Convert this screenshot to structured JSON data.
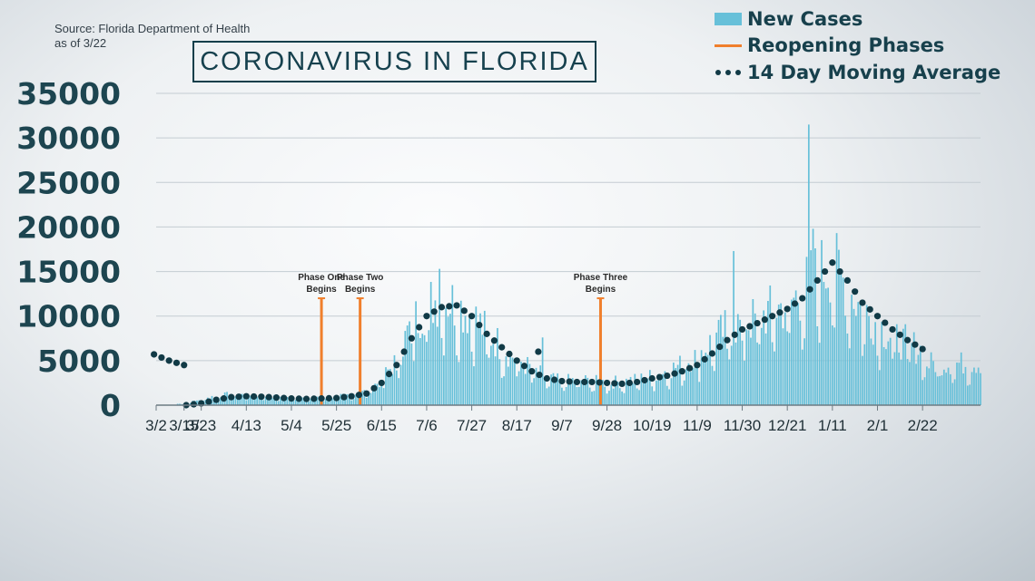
{
  "source": {
    "line1": "Source: Florida Department of Health",
    "line2": "as of 3/22"
  },
  "colors": {
    "bar": "#67c0d9",
    "phase": "#f07f2c",
    "average": "#113a46",
    "grid": "#c4ccd2",
    "axis": "#6d7b83"
  },
  "chart_data": {
    "type": "bar",
    "title": "CORONAVIRUS IN FLORIDA",
    "xlabel": "",
    "ylabel": "",
    "ylim": [
      0,
      35000
    ],
    "yticks": [
      0,
      5000,
      10000,
      15000,
      20000,
      25000,
      30000,
      35000
    ],
    "xticks": [
      "3/2",
      "3/23",
      "4/13",
      "5/4",
      "5/25",
      "6/15",
      "7/6",
      "7/27",
      "8/17",
      "9/7",
      "9/28",
      "10/19",
      "11/9",
      "11/30",
      "12/21",
      "1/11",
      "2/1",
      "2/22",
      "3/15"
    ],
    "grid": true,
    "legend_position": "top-right",
    "legend": [
      "New Cases",
      "Reopening Phases",
      "14 Day Moving Average"
    ],
    "date_range": [
      "3/2/2020",
      "3/21/2021"
    ],
    "series": [
      {
        "name": "New Cases",
        "type": "bar",
        "x": [
          "3/16",
          "3/23",
          "3/30",
          "4/6",
          "4/13",
          "4/20",
          "4/27",
          "5/4",
          "5/11",
          "5/18",
          "5/25",
          "6/1",
          "6/8",
          "6/15",
          "6/22",
          "6/29",
          "7/6",
          "7/13",
          "7/20",
          "7/27",
          "8/3",
          "8/10",
          "8/17",
          "8/24",
          "8/31",
          "9/7",
          "9/14",
          "9/21",
          "9/28",
          "10/5",
          "10/12",
          "10/19",
          "10/26",
          "11/2",
          "11/9",
          "11/16",
          "11/23",
          "11/30",
          "12/7",
          "12/14",
          "12/21",
          "12/28",
          "1/4",
          "1/11",
          "1/18",
          "1/25",
          "2/1",
          "2/8",
          "2/15",
          "2/22",
          "3/1",
          "3/8",
          "3/15"
        ],
        "values": [
          150,
          700,
          1000,
          1200,
          1100,
          1000,
          900,
          800,
          750,
          800,
          900,
          1200,
          1500,
          2800,
          5000,
          9000,
          11000,
          12000,
          11000,
          10000,
          8000,
          6500,
          5000,
          4000,
          3000,
          2600,
          2800,
          2600,
          2500,
          2600,
          2800,
          3200,
          3800,
          4500,
          5500,
          7000,
          8500,
          9000,
          9500,
          10500,
          11000,
          12500,
          14500,
          15500,
          13000,
          10500,
          9000,
          7500,
          6800,
          6000,
          5500,
          4900,
          4600
        ],
        "annotations": [
          {
            "x": "12/31",
            "value": 31500
          },
          {
            "x": "11/26",
            "value": 17300
          },
          {
            "x": "7/12",
            "value": 15300
          },
          {
            "x": "1/2",
            "value": 19800
          },
          {
            "x": "8/29",
            "value": 7600
          }
        ]
      },
      {
        "name": "14 Day Moving Average",
        "type": "scatter",
        "x": [
          "3/16",
          "3/23",
          "3/30",
          "4/6",
          "4/13",
          "4/20",
          "4/27",
          "5/4",
          "5/11",
          "5/18",
          "5/25",
          "6/1",
          "6/8",
          "6/15",
          "6/22",
          "6/29",
          "7/6",
          "7/13",
          "7/20",
          "7/27",
          "8/3",
          "8/10",
          "8/17",
          "8/24",
          "8/31",
          "9/7",
          "9/14",
          "9/21",
          "9/28",
          "10/5",
          "10/12",
          "10/19",
          "10/26",
          "11/2",
          "11/9",
          "11/16",
          "11/23",
          "11/30",
          "12/7",
          "12/14",
          "12/21",
          "12/28",
          "1/4",
          "1/11",
          "1/18",
          "1/25",
          "2/1",
          "2/8",
          "2/15",
          "2/22",
          "3/1",
          "3/8",
          "3/15"
        ],
        "values": [
          0,
          200,
          600,
          900,
          1000,
          950,
          850,
          750,
          700,
          750,
          800,
          1000,
          1300,
          2500,
          4500,
          7500,
          10000,
          11000,
          11200,
          10000,
          8000,
          6500,
          5000,
          3800,
          3000,
          2700,
          2600,
          2600,
          2500,
          2400,
          2600,
          3000,
          3300,
          3800,
          4500,
          5800,
          7300,
          8500,
          9200,
          10000,
          10800,
          12000,
          14000,
          16000,
          14000,
          11500,
          10000,
          8500,
          7300,
          6300,
          5700,
          5000,
          4500
        ]
      }
    ],
    "phases": [
      {
        "label_line1": "Phase One",
        "label_line2": "Begins",
        "x": "5/18",
        "value": 12000
      },
      {
        "label_line1": "Phase Two",
        "label_line2": "Begins",
        "x": "6/5",
        "value": 12000
      },
      {
        "label_line1": "Phase Three",
        "label_line2": "Begins",
        "x": "9/25",
        "value": 12000
      }
    ]
  }
}
